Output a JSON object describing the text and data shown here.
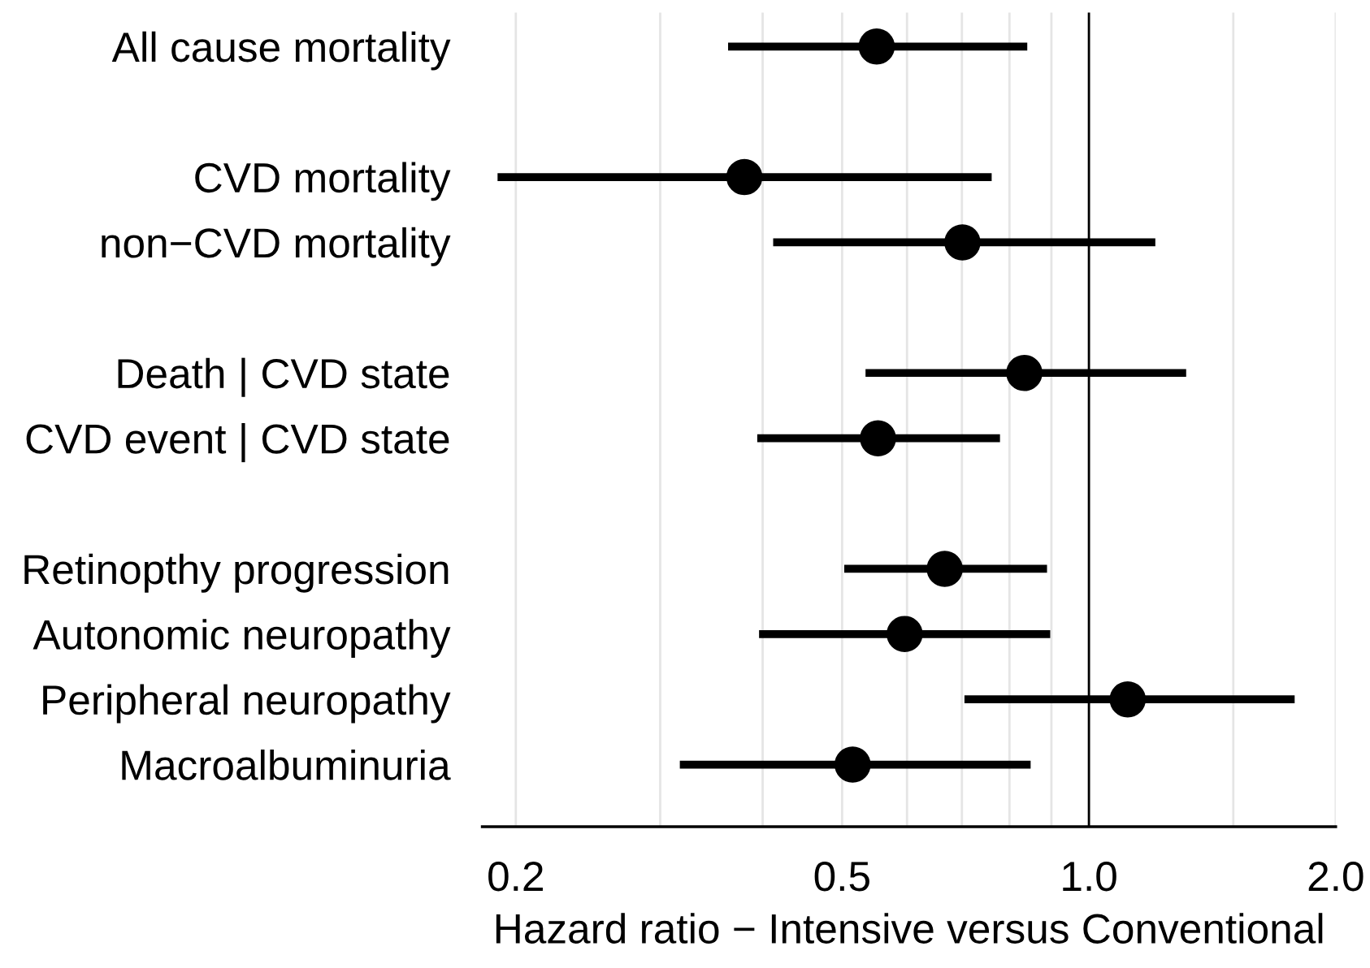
{
  "chart_data": {
    "type": "scatter",
    "orientation": "horizontal",
    "categories": [
      "All cause mortality",
      null,
      "CVD mortality",
      "non−CVD mortality",
      null,
      "Death | CVD state",
      "CVD event | CVD state",
      null,
      "Retinopthy progression",
      "Autonomic neuropathy",
      "Peripheral neuropathy",
      "Macroalbuminuria"
    ],
    "values": [
      0.551,
      null,
      0.38,
      0.701,
      null,
      0.834,
      0.553,
      null,
      0.667,
      0.596,
      1.115,
      0.515
    ],
    "errors": [
      [
        0.363,
        0.841
      ],
      null,
      [
        0.19,
        0.761
      ],
      [
        0.412,
        1.205
      ],
      null,
      [
        0.534,
        1.314
      ],
      [
        0.394,
        0.779
      ],
      null,
      [
        0.503,
        0.889
      ],
      [
        0.396,
        0.897
      ],
      [
        0.705,
        1.782
      ],
      [
        0.317,
        0.849
      ]
    ],
    "color": "#000000",
    "marker": "circle",
    "log": "x",
    "xlim": [
      0.182,
      2.0
    ],
    "xticks": [
      {
        "value": 0.2,
        "label": "0.2"
      },
      {
        "value": 0.3,
        "label": null
      },
      {
        "value": 0.4,
        "label": null
      },
      {
        "value": 0.5,
        "label": "0.5"
      },
      {
        "value": 0.6,
        "label": null
      },
      {
        "value": 0.7,
        "label": null
      },
      {
        "value": 0.8,
        "label": null
      },
      {
        "value": 0.9,
        "label": null
      },
      {
        "value": 1.0,
        "label": "1.0"
      },
      {
        "value": 1.5,
        "label": null
      },
      {
        "value": 2.0,
        "label": "2.0"
      }
    ],
    "grid": "x",
    "ref_lines": [
      {
        "axis": "x",
        "value": 1.0,
        "color": "#000000"
      }
    ],
    "xlabel": "Hazard ratio − Intensive versus Conventional"
  }
}
